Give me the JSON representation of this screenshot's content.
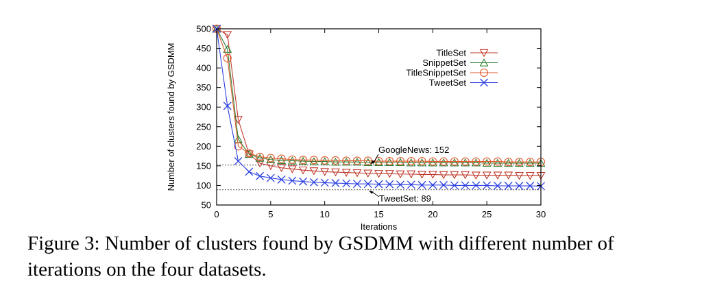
{
  "chart_data": {
    "type": "line",
    "title": "",
    "xlabel": "Iterations",
    "ylabel": "Number of clusters found by GSDMM",
    "xlim": [
      0,
      30
    ],
    "ylim": [
      50,
      500
    ],
    "xticks": [
      "0",
      "5",
      "10",
      "15",
      "20",
      "25",
      "30"
    ],
    "yticks": [
      "50",
      "100",
      "150",
      "200",
      "250",
      "300",
      "350",
      "400",
      "450",
      "500"
    ],
    "x": [
      0,
      1,
      2,
      3,
      4,
      5,
      6,
      7,
      8,
      9,
      10,
      11,
      12,
      13,
      14,
      15,
      16,
      17,
      18,
      19,
      20,
      21,
      22,
      23,
      24,
      25,
      26,
      27,
      28,
      29,
      30
    ],
    "series": [
      {
        "name": "TitleSet",
        "color": "#c0392b",
        "marker": "triangle-down",
        "values": [
          500,
          485,
          268,
          180,
          157,
          150,
          145,
          142,
          139,
          137,
          135,
          134,
          133,
          132,
          131,
          130,
          130,
          129,
          129,
          128,
          128,
          127,
          127,
          127,
          126,
          126,
          126,
          126,
          125,
          125,
          125
        ]
      },
      {
        "name": "SnippetSet",
        "color": "#2e7d32",
        "marker": "triangle-up",
        "values": [
          500,
          448,
          218,
          180,
          170,
          166,
          164,
          163,
          162,
          161,
          161,
          160,
          160,
          160,
          159,
          159,
          159,
          159,
          158,
          158,
          158,
          158,
          158,
          158,
          158,
          157,
          157,
          157,
          157,
          157,
          157
        ]
      },
      {
        "name": "TitleSnippetSet",
        "color": "#e05a2c",
        "marker": "circle",
        "values": [
          500,
          425,
          200,
          182,
          173,
          170,
          168,
          166,
          165,
          165,
          164,
          164,
          163,
          163,
          163,
          162,
          162,
          162,
          162,
          162,
          161,
          161,
          161,
          161,
          161,
          161,
          161,
          160,
          160,
          160,
          160
        ]
      },
      {
        "name": "TweetSet",
        "color": "#2b3fe0",
        "marker": "x",
        "values": [
          500,
          303,
          162,
          135,
          124,
          119,
          115,
          112,
          110,
          108,
          107,
          106,
          105,
          104,
          104,
          103,
          103,
          102,
          102,
          101,
          101,
          101,
          100,
          100,
          100,
          100,
          99,
          99,
          99,
          99,
          98
        ]
      }
    ],
    "reference_lines": [
      {
        "label": "GoogleNews: 152",
        "value": 152
      },
      {
        "label": "TweetSet: 89",
        "value": 89
      }
    ],
    "legend": "top-right"
  },
  "caption": "Figure 3: Number of clusters found by GSDMM with different number of iterations on the four datasets."
}
